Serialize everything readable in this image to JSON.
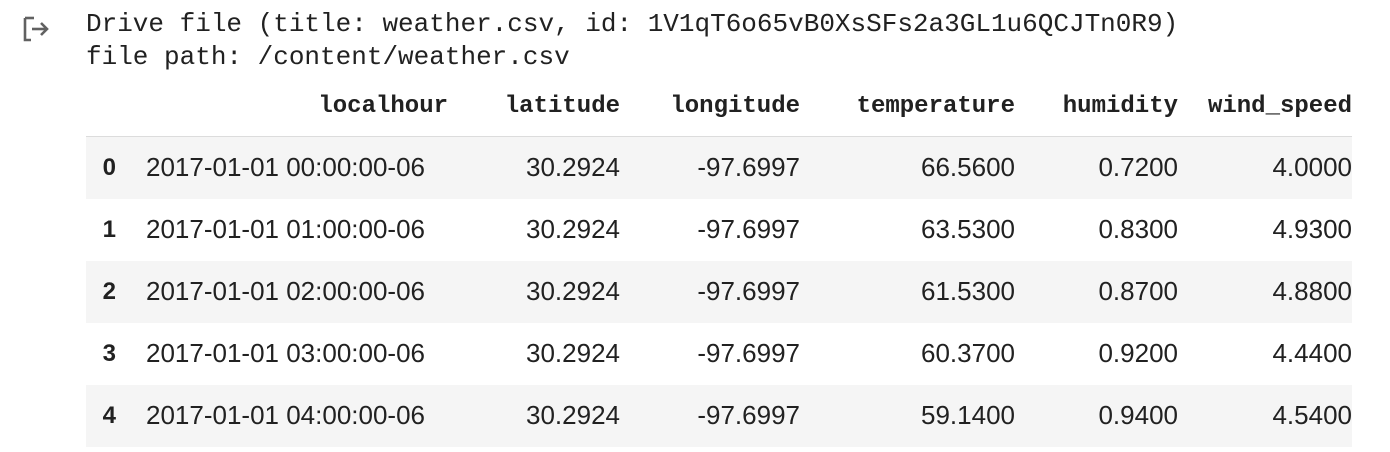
{
  "output": {
    "icon": "output-redirect-icon",
    "stdout_lines": [
      "Drive file (title: weather.csv, id: 1V1qT6o65vB0XsSFs2a3GL1u6QCJTn0R9)",
      "file path: /content/weather.csv"
    ]
  },
  "dataframe": {
    "index_header": "",
    "columns": [
      "localhour",
      "latitude",
      "longitude",
      "temperature",
      "humidity",
      "wind_speed"
    ],
    "rows": [
      {
        "index": "0",
        "values": [
          "2017-01-01 00:00:00-06",
          "30.2924",
          "-97.6997",
          "66.5600",
          "0.7200",
          "4.0000"
        ]
      },
      {
        "index": "1",
        "values": [
          "2017-01-01 01:00:00-06",
          "30.2924",
          "-97.6997",
          "63.5300",
          "0.8300",
          "4.9300"
        ]
      },
      {
        "index": "2",
        "values": [
          "2017-01-01 02:00:00-06",
          "30.2924",
          "-97.6997",
          "61.5300",
          "0.8700",
          "4.8800"
        ]
      },
      {
        "index": "3",
        "values": [
          "2017-01-01 03:00:00-06",
          "30.2924",
          "-97.6997",
          "60.3700",
          "0.9200",
          "4.4400"
        ]
      },
      {
        "index": "4",
        "values": [
          "2017-01-01 04:00:00-06",
          "30.2924",
          "-97.6997",
          "59.1400",
          "0.9400",
          "4.5400"
        ]
      }
    ]
  },
  "colors": {
    "text": "#212121",
    "row_stripe": "#f5f5f5",
    "icon": "#616161"
  }
}
